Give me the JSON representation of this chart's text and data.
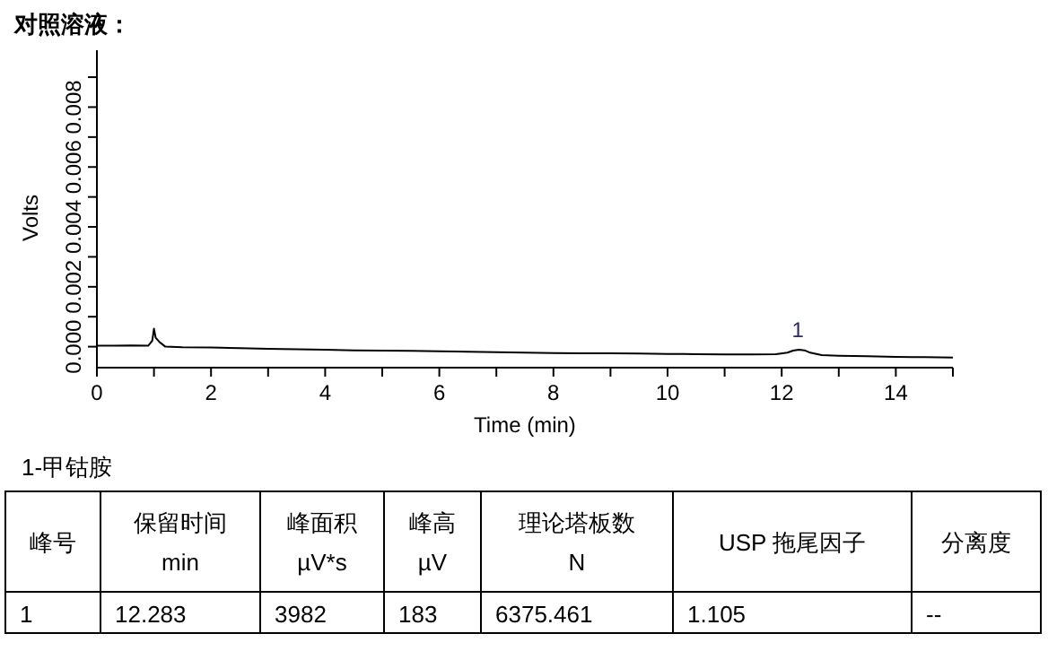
{
  "chart_data": [
    {
      "type": "line",
      "title": "对照溶液：",
      "xlabel": "Time (min)",
      "ylabel": "Volts",
      "x": [
        0,
        0.3,
        0.6,
        0.9,
        0.97,
        1.0,
        1.03,
        1.1,
        1.2,
        1.5,
        2,
        2.5,
        3,
        3.5,
        4,
        4.5,
        5,
        5.5,
        6,
        6.5,
        7,
        7.5,
        8,
        8.5,
        9,
        9.5,
        10,
        10.5,
        11,
        11.5,
        11.9,
        12.1,
        12.2,
        12.3,
        12.4,
        12.5,
        12.7,
        13,
        13.5,
        14,
        14.5,
        15
      ],
      "values": [
        3e-05,
        3e-05,
        4e-05,
        3e-05,
        0.0002,
        0.0006,
        0.0003,
        0.00015,
        0.0,
        -2e-05,
        -3e-05,
        -5e-05,
        -7e-05,
        -9e-05,
        -0.0001,
        -0.00012,
        -0.00013,
        -0.00014,
        -0.00015,
        -0.00017,
        -0.00018,
        -0.0002,
        -0.00021,
        -0.00022,
        -0.00022,
        -0.00023,
        -0.00024,
        -0.00025,
        -0.00026,
        -0.00026,
        -0.00025,
        -0.0002,
        -0.00013,
        -0.0001,
        -0.00012,
        -0.0002,
        -0.00028,
        -0.0003,
        -0.00032,
        -0.00034,
        -0.00035,
        -0.00036
      ],
      "color": "#000000",
      "xlim": [
        0,
        15
      ],
      "xticks": [
        0,
        {
          "value": 1,
          "label": null
        },
        2,
        {
          "value": 3,
          "label": null
        },
        4,
        {
          "value": 5,
          "label": null
        },
        6,
        {
          "value": 7,
          "label": null
        },
        8,
        {
          "value": 9,
          "label": null
        },
        10,
        {
          "value": 11,
          "label": null
        },
        12,
        {
          "value": 13,
          "label": null
        },
        14,
        {
          "value": 15,
          "label": null
        }
      ],
      "ylim": [
        -0.0007,
        0.0099
      ],
      "yticks": [
        {
          "value": 0,
          "label": "0.000"
        },
        {
          "value": 0.001,
          "label": null
        },
        {
          "value": 0.002,
          "label": "0.002"
        },
        {
          "value": 0.003,
          "label": null
        },
        {
          "value": 0.004,
          "label": "0.004"
        },
        {
          "value": 0.005,
          "label": null
        },
        {
          "value": 0.006,
          "label": "0.006"
        },
        {
          "value": 0.007,
          "label": null
        },
        {
          "value": 0.008,
          "label": "0.008"
        },
        {
          "value": 0.009,
          "label": null
        }
      ],
      "annotations": [
        {
          "text": "1",
          "x": 12.283,
          "y": -0.0001
        }
      ]
    },
    {
      "type": "other",
      "title": "1-甲钴胺",
      "annotations": [
        "峰号",
        "保留时间\nmin",
        "峰面积\nµV*s",
        "峰高\nµV",
        "理论塔板数\nN",
        "USP 拖尾因子",
        "分离度",
        "1",
        "12.283",
        "3982",
        "183",
        "6375.461",
        "1.105",
        "--"
      ]
    }
  ]
}
